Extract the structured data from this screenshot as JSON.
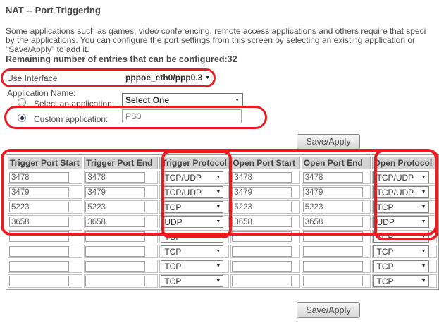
{
  "page": {
    "title": "NAT -- Port Triggering",
    "description_lines": [
      "Some applications such as games, video conferencing, remote access applications and others require that speci",
      "by the applications. You can configure the port settings from this screen by selecting an existing application or",
      "\"Save/Apply\" to add it."
    ],
    "remaining_label": "Remaining number of entries that can be configured:32"
  },
  "form": {
    "use_interface_label": "Use Interface",
    "use_interface_value": "pppoe_eth0/ppp0.3",
    "application_name_label": "Application Name:",
    "select_application_label": "Select an application:",
    "select_application_value": "Select One",
    "custom_application_label": "Custom application:",
    "custom_application_value": "PS3"
  },
  "buttons": {
    "save_apply_top": "Save/Apply",
    "save_apply_bottom": "Save/Apply"
  },
  "table": {
    "headers": [
      "Trigger Port Start",
      "Trigger Port End",
      "Trigger Protocol",
      "Open Port Start",
      "Open Port End",
      "Open Protocol"
    ],
    "rows": [
      {
        "trigger_start": "3478",
        "trigger_end": "3478",
        "trigger_protocol": "TCP/UDP",
        "open_start": "3478",
        "open_end": "3478",
        "open_protocol": "TCP/UDP"
      },
      {
        "trigger_start": "3479",
        "trigger_end": "3479",
        "trigger_protocol": "TCP/UDP",
        "open_start": "3479",
        "open_end": "3479",
        "open_protocol": "TCP/UDP"
      },
      {
        "trigger_start": "5223",
        "trigger_end": "5223",
        "trigger_protocol": "TCP",
        "open_start": "5223",
        "open_end": "5223",
        "open_protocol": "TCP"
      },
      {
        "trigger_start": "3658",
        "trigger_end": "3658",
        "trigger_protocol": "UDP",
        "open_start": "3658",
        "open_end": "3658",
        "open_protocol": "UDP"
      },
      {
        "trigger_start": "",
        "trigger_end": "",
        "trigger_protocol": "TCP",
        "open_start": "",
        "open_end": "",
        "open_protocol": "TCP"
      },
      {
        "trigger_start": "",
        "trigger_end": "",
        "trigger_protocol": "TCP",
        "open_start": "",
        "open_end": "",
        "open_protocol": "TCP"
      },
      {
        "trigger_start": "",
        "trigger_end": "",
        "trigger_protocol": "TCP",
        "open_start": "",
        "open_end": "",
        "open_protocol": "TCP"
      },
      {
        "trigger_start": "",
        "trigger_end": "",
        "trigger_protocol": "TCP",
        "open_start": "",
        "open_end": "",
        "open_protocol": "TCP"
      }
    ]
  },
  "icons": {
    "dropdown_arrow": "▼"
  },
  "colors": {
    "annotation_red": "#ea1c23",
    "header_bg": "#d3d3d3",
    "text": "#4a4a4a"
  }
}
